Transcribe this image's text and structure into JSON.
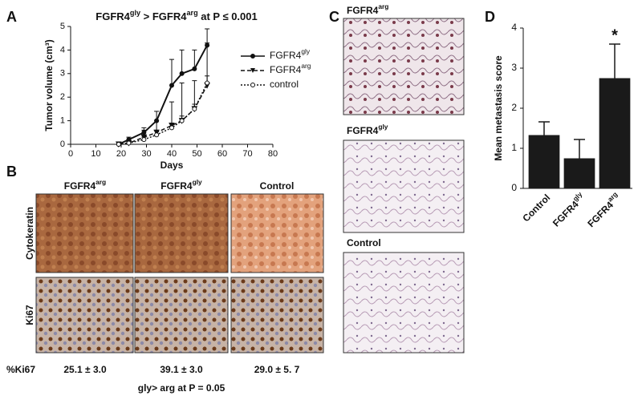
{
  "chart_data": [
    {
      "type": "line",
      "title": "FGFR4gly > FGFR4arg at P ≤ 0.001",
      "x_label": "Days",
      "y_label": "Tumor volume (cm³)",
      "x": [
        19,
        23,
        29,
        34,
        40,
        44,
        49,
        54
      ],
      "series": [
        {
          "name": "FGFR4gly",
          "color": "#111111",
          "dash": "solid",
          "marker": "filled-circle",
          "values": [
            0,
            0.2,
            0.5,
            1.0,
            2.5,
            3.0,
            3.2,
            4.2
          ],
          "errors": [
            0,
            0.1,
            0.2,
            0.4,
            1.1,
            1.0,
            0.8,
            0.7
          ]
        },
        {
          "name": "FGFR4arg",
          "color": "#111111",
          "dash": "dashed",
          "marker": "triangle",
          "values": [
            0,
            0.05,
            0.3,
            0.5,
            0.8,
            1.0,
            1.5,
            2.5
          ],
          "errors": [
            0,
            0.05,
            0.3,
            0.5,
            1.0,
            1.6,
            1.2,
            1.8
          ]
        },
        {
          "name": "control",
          "color": "#111111",
          "dash": "dotted",
          "marker": "open-circle",
          "values": [
            0,
            0.05,
            0.2,
            0.4,
            0.7,
            1.0,
            1.5,
            2.6
          ],
          "errors": [
            0,
            0.05,
            0.1,
            0.2,
            0.2,
            0.2,
            0.2,
            0.3
          ]
        }
      ],
      "xlim": [
        0,
        80
      ],
      "xticks": [
        0,
        10,
        20,
        30,
        40,
        50,
        60,
        70,
        80
      ],
      "ylim": [
        0,
        5
      ],
      "yticks": [
        0,
        1,
        2,
        3,
        4,
        5
      ],
      "legend": "right"
    },
    {
      "type": "bar",
      "y_label": "Mean metastasis score",
      "categories": [
        "Control",
        "FGFR4gly",
        "FGFR4arg"
      ],
      "values": [
        1.33,
        0.75,
        2.75
      ],
      "errors": [
        0.33,
        0.47,
        0.85
      ],
      "color": "#1a1a1a",
      "annotations": [
        null,
        null,
        "*"
      ],
      "ylim": [
        0,
        4
      ],
      "yticks": [
        0,
        1,
        2,
        3,
        4
      ]
    }
  ],
  "panels": {
    "letters": [
      "A",
      "B",
      "C",
      "D"
    ],
    "B": {
      "columns": [
        "FGFR4arg",
        "FGFR4gly",
        "Control"
      ],
      "rows": [
        "Cytokeratin",
        "Ki67"
      ],
      "ki67_label": "%Ki67",
      "ki67_values": [
        "25.1 ± 3.0",
        "39.1 ± 3.0",
        "29.0 ± 5. 7"
      ],
      "footnote": "gly> arg at P = 0.05"
    },
    "C": {
      "labels": [
        "FGFR4arg",
        "FGFR4gly",
        "Control"
      ]
    }
  }
}
